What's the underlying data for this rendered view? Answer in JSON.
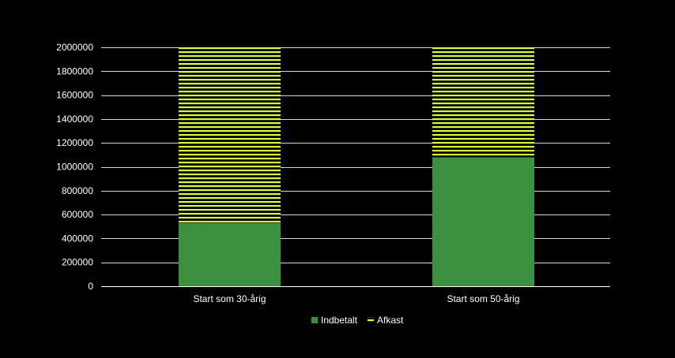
{
  "chart_data": {
    "type": "bar",
    "stacked": true,
    "categories": [
      "Start som 30-årig",
      "Start som 50-årig"
    ],
    "series": [
      {
        "name": "Indbetalt",
        "values": [
          530000,
          1080000
        ],
        "color": "#3c9140",
        "pattern": "solid"
      },
      {
        "name": "Afkast",
        "values": [
          1470000,
          920000
        ],
        "color": "#d8ff3c",
        "pattern": "horizontal-stripes"
      }
    ],
    "yticks": [
      0,
      200000,
      400000,
      600000,
      800000,
      1000000,
      1200000,
      1400000,
      1600000,
      1800000,
      2000000
    ],
    "ylim": [
      0,
      2000000
    ],
    "grid": true,
    "legend_position": "bottom-center",
    "background": "#000000",
    "gridline_color": "#ffffff"
  }
}
